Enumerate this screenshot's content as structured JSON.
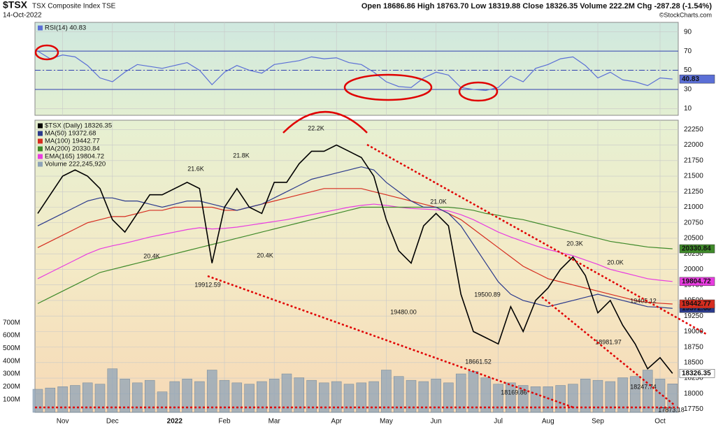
{
  "header": {
    "symbol": "$TSX",
    "name": "TSX Composite Index TSE",
    "date": "14-Oct-2022",
    "quote": "Open 18686.86  High 18763.70  Low 18319.88  Close 18326.35  Volume 222.2M  Chg -287.28 (-1.54%)",
    "credit": "©StockCharts.com"
  },
  "chart_data": [
    {
      "type": "line",
      "categories": [
        null,
        null,
        "Nov",
        null,
        null,
        null,
        "Dec",
        null,
        null,
        null,
        null,
        "2022",
        null,
        null,
        null,
        "Feb",
        null,
        null,
        null,
        "Mar",
        null,
        null,
        null,
        null,
        "Apr",
        null,
        null,
        null,
        "May",
        null,
        null,
        null,
        "Jun",
        null,
        null,
        null,
        null,
        "Jul",
        null,
        null,
        null,
        "Aug",
        null,
        null,
        null,
        "Sep",
        null,
        null,
        null,
        null,
        "Oct",
        null
      ],
      "series": [
        {
          "name": "RSI(14) 40.83",
          "color": "#5b6fd6",
          "values": [
            70,
            62,
            66,
            64,
            55,
            42,
            38,
            48,
            56,
            54,
            52,
            55,
            58,
            50,
            35,
            48,
            55,
            50,
            47,
            56,
            58,
            60,
            64,
            62,
            63,
            58,
            56,
            48,
            38,
            33,
            32,
            42,
            48,
            45,
            32,
            30,
            29,
            32,
            44,
            38,
            52,
            56,
            62,
            64,
            55,
            42,
            48,
            40,
            38,
            34,
            42,
            40.83
          ]
        }
      ],
      "ylim": [
        3,
        100
      ],
      "yticks": [
        10,
        30,
        50,
        70,
        90
      ],
      "reference_lines": [
        70,
        50,
        30
      ],
      "grid": true
    },
    {
      "type": "line",
      "categories": [
        null,
        null,
        "Nov",
        null,
        null,
        null,
        "Dec",
        null,
        null,
        null,
        null,
        "2022",
        null,
        null,
        null,
        "Feb",
        null,
        null,
        null,
        "Mar",
        null,
        null,
        null,
        null,
        "Apr",
        null,
        null,
        null,
        "May",
        null,
        null,
        null,
        "Jun",
        null,
        null,
        null,
        null,
        "Jul",
        null,
        null,
        null,
        "Aug",
        null,
        null,
        null,
        "Sep",
        null,
        null,
        null,
        null,
        "Oct",
        null
      ],
      "series": [
        {
          "name": "$TSX (Daily) 18326.35",
          "color": "#000000",
          "values": [
            20900,
            21200,
            21500,
            21600,
            21500,
            21300,
            20800,
            20600,
            20900,
            21200,
            21200,
            21300,
            21400,
            21300,
            20100,
            21000,
            21300,
            21000,
            20900,
            21400,
            21400,
            21700,
            21900,
            21900,
            22000,
            21900,
            21800,
            21500,
            20800,
            20300,
            20100,
            20700,
            20900,
            20700,
            19600,
            19000,
            18900,
            18800,
            19400,
            19000,
            19500,
            19700,
            20000,
            20200,
            19900,
            19300,
            19500,
            19100,
            18800,
            18400,
            18580,
            18326.35
          ]
        },
        {
          "name": "MA(50) 19372.68",
          "color": "#2b3a8c",
          "values": [
            20700,
            20800,
            20900,
            21000,
            21100,
            21150,
            21150,
            21100,
            21100,
            21050,
            21000,
            21050,
            21100,
            21100,
            21050,
            21000,
            20950,
            21000,
            21050,
            21150,
            21250,
            21350,
            21450,
            21500,
            21550,
            21600,
            21650,
            21600,
            21400,
            21250,
            21100,
            21000,
            21000,
            20900,
            20700,
            20400,
            20100,
            19800,
            19600,
            19500,
            19450,
            19400,
            19450,
            19500,
            19550,
            19600,
            19550,
            19500,
            19450,
            19400,
            19390,
            19372.68
          ]
        },
        {
          "name": "MA(100) 19442.77",
          "color": "#d62d20",
          "values": [
            20350,
            20450,
            20550,
            20650,
            20750,
            20800,
            20850,
            20850,
            20900,
            20950,
            20950,
            21000,
            21000,
            21000,
            21000,
            20950,
            20950,
            21000,
            21050,
            21100,
            21150,
            21200,
            21250,
            21300,
            21300,
            21300,
            21300,
            21250,
            21200,
            21150,
            21100,
            21050,
            21000,
            20900,
            20800,
            20650,
            20500,
            20350,
            20200,
            20050,
            19950,
            19850,
            19800,
            19750,
            19700,
            19650,
            19600,
            19550,
            19500,
            19470,
            19455,
            19442.77
          ]
        },
        {
          "name": "MA(200) 20330.84",
          "color": "#3f8a2a",
          "values": [
            19450,
            19550,
            19650,
            19750,
            19850,
            19950,
            20000,
            20050,
            20100,
            20150,
            20200,
            20250,
            20300,
            20350,
            20400,
            20450,
            20500,
            20550,
            20600,
            20650,
            20700,
            20750,
            20800,
            20850,
            20900,
            20950,
            21000,
            21000,
            21000,
            21000,
            21000,
            21000,
            21000,
            21000,
            20980,
            20950,
            20900,
            20870,
            20830,
            20800,
            20750,
            20700,
            20650,
            20600,
            20550,
            20500,
            20450,
            20420,
            20390,
            20360,
            20345,
            20330.84
          ]
        },
        {
          "name": "EMA(165) 19804.72",
          "color": "#e83ce0",
          "values": [
            19850,
            19950,
            20050,
            20150,
            20250,
            20330,
            20380,
            20420,
            20470,
            20520,
            20560,
            20600,
            20640,
            20670,
            20650,
            20660,
            20680,
            20710,
            20740,
            20770,
            20800,
            20840,
            20880,
            20920,
            20960,
            21000,
            21030,
            21050,
            21030,
            21000,
            20980,
            20970,
            20960,
            20940,
            20880,
            20800,
            20700,
            20600,
            20520,
            20450,
            20380,
            20320,
            20270,
            20220,
            20150,
            20080,
            20000,
            19950,
            19900,
            19850,
            19825,
            19804.72
          ]
        },
        {
          "name": "Volume 222,245,920",
          "color": "#8da3b8",
          "type": "bar",
          "axis": "y2",
          "values": [
            180,
            190,
            200,
            210,
            230,
            220,
            340,
            260,
            230,
            250,
            160,
            240,
            260,
            240,
            330,
            250,
            230,
            220,
            240,
            260,
            300,
            270,
            250,
            230,
            240,
            220,
            230,
            240,
            330,
            280,
            250,
            240,
            260,
            230,
            300,
            320,
            270,
            220,
            230,
            210,
            200,
            200,
            210,
            220,
            260,
            250,
            240,
            270,
            280,
            330,
            260,
            222.2
          ]
        }
      ],
      "ylim": [
        17700,
        22400
      ],
      "yticks": [
        17750,
        18000,
        18250,
        18500,
        18750,
        19000,
        19250,
        19500,
        19750,
        20000,
        20250,
        20500,
        20750,
        21000,
        21250,
        21500,
        21750,
        22000,
        22250
      ],
      "y2lim": [
        0,
        2280
      ],
      "y2ticks": [
        {
          "value": 100,
          "label": "100M"
        },
        {
          "value": 200,
          "label": "200M"
        },
        {
          "value": 300,
          "label": "300M"
        },
        {
          "value": 400,
          "label": "400M"
        },
        {
          "value": 500,
          "label": "500M"
        },
        {
          "value": 600,
          "label": "600M"
        },
        {
          "value": 700,
          "label": "700M"
        }
      ],
      "grid": true,
      "annotations": [
        "21.6K",
        "21.8K",
        "22.2K",
        "20.4K",
        "20.4K",
        "19912.59",
        "19480.00",
        "21.0K",
        "19500.89",
        "18661.52",
        "18169.86",
        "20.3K",
        "20.0K",
        "19405.12",
        "18981.97",
        "18247.74",
        "17873.18"
      ]
    }
  ]
}
